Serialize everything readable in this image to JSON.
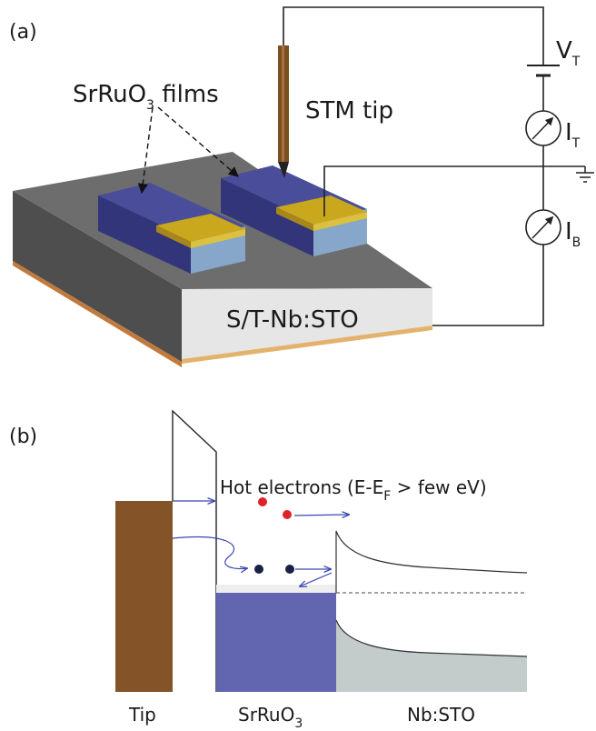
{
  "panel_a": {
    "label": "(a)",
    "films_label": "SrRuO",
    "films_sub": "3",
    "films_suffix": " films",
    "tip_label": "STM tip",
    "substrate_label": "S/T-Nb:STO",
    "vt_main": "V",
    "vt_sub": "T",
    "it_main": "I",
    "it_sub": "T",
    "ib_main": "I",
    "ib_sub": "B"
  },
  "panel_b": {
    "label": "(b)",
    "hot_prefix": "Hot electrons (E-E",
    "hot_sub": "F",
    "hot_suffix": " > few eV)",
    "tip_label": "Tip",
    "sro_main": "SrRuO",
    "sro_sub": "3",
    "nbsto_label": "Nb:STO"
  },
  "colors": {
    "tip_metal": "#845428",
    "film_blue": "#3e3f88",
    "film_light": "#86a7c9",
    "gold": "#c9a81d",
    "substrate_top": "#6d6d6d",
    "substrate_front": "#e6e6e6",
    "sro_band": "#6265b0",
    "nbsto_band": "#c4cbcb",
    "hot_electron": "#e0202a",
    "cold_electron": "#1a2148",
    "arrow": "#3a48b0"
  }
}
